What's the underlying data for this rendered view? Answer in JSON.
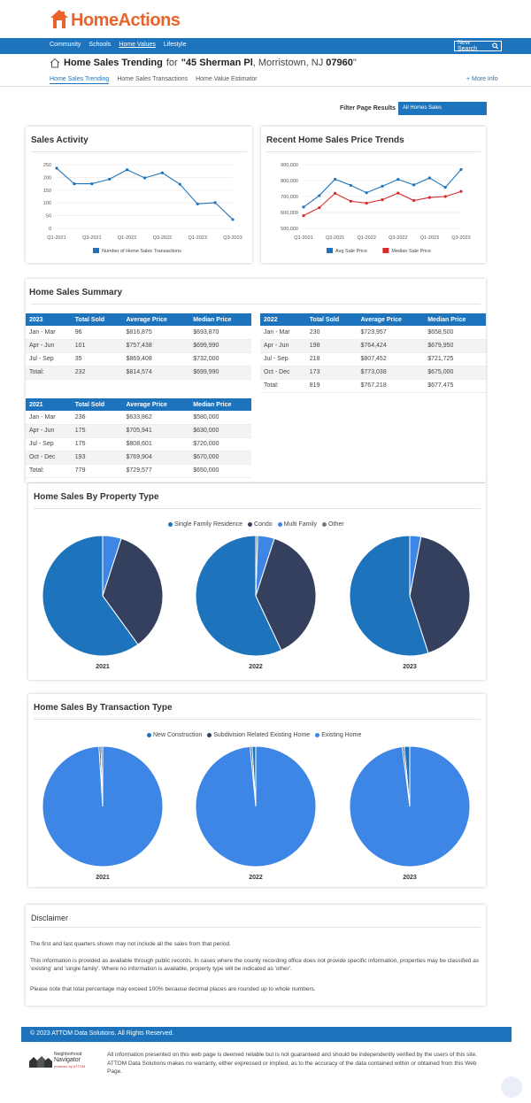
{
  "brand": {
    "name": "HomeActions",
    "accent": "#1d74bc",
    "logo_color": "#e8642c"
  },
  "nav": {
    "items": [
      "Community",
      "Schools",
      "Home Values",
      "Lifestyle"
    ],
    "active": "Home Values",
    "new_search": "New Search"
  },
  "address": {
    "prefix": "Home Sales Trending",
    "for": "for",
    "street": "\"45 Sherman Pl",
    "city": ", Morristown, NJ ",
    "zip": "07960",
    "close": "\""
  },
  "subtabs": [
    "Home Sales Trending",
    "Home Sales Transactions",
    "Home Value Estimator"
  ],
  "more_info": "+ More Info",
  "filter": {
    "label": "Filter Page Results",
    "value": "All Homes Sales"
  },
  "sales_activity": {
    "title": "Sales Activity",
    "chart_data": {
      "type": "line",
      "x": [
        "Q1-2021",
        "Q2-2021",
        "Q3-2021",
        "Q4-2021",
        "Q1-2022",
        "Q2-2022",
        "Q3-2022",
        "Q4-2022",
        "Q1-2023",
        "Q2-2023",
        "Q3-2023"
      ],
      "tick_labels": [
        "Q1-2021",
        "Q3-2021",
        "Q1-2022",
        "Q3-2022",
        "Q1-2023",
        "Q3-2023"
      ],
      "series": [
        {
          "name": "Number of Home Sales Transactions",
          "values": [
            236,
            175,
            175,
            193,
            230,
            198,
            218,
            173,
            96,
            101,
            35
          ],
          "color": "#1d74bc"
        }
      ],
      "yticks": [
        "250",
        "200",
        "150",
        "100",
        "50",
        "0"
      ],
      "ylim": [
        0,
        250
      ]
    }
  },
  "price_trends": {
    "title": "Recent Home Sales Price Trends",
    "chart_data": {
      "type": "line",
      "x": [
        "Q1-2021",
        "Q2-2021",
        "Q3-2021",
        "Q4-2021",
        "Q1-2022",
        "Q2-2022",
        "Q3-2022",
        "Q4-2022",
        "Q1-2023",
        "Q2-2023",
        "Q3-2023"
      ],
      "tick_labels": [
        "Q1-2021",
        "Q3-2021",
        "Q1-2022",
        "Q3-2022",
        "Q1-2023",
        "Q3-2023"
      ],
      "series": [
        {
          "name": "Avg Sale Price",
          "values": [
            633862,
            705941,
            808601,
            769904,
            723957,
            764424,
            807452,
            773038,
            816875,
            757438,
            869408
          ],
          "color": "#1d74bc"
        },
        {
          "name": "Median Sale Price",
          "values": [
            580000,
            630000,
            720000,
            670000,
            658500,
            679950,
            721725,
            675000,
            693870,
            699990,
            732000
          ],
          "color": "#d92b2b"
        }
      ],
      "yticks": [
        "900,000",
        "800,000",
        "700,000",
        "600,000",
        "500,000"
      ],
      "ylim": [
        500000,
        900000
      ]
    }
  },
  "summary": {
    "title": "Home Sales Summary",
    "headers": [
      "Total Sold",
      "Average Price",
      "Median Price"
    ],
    "tables": [
      {
        "year": "2023",
        "rows": [
          [
            "Jan - Mar",
            "96",
            "$816,875",
            "$693,870"
          ],
          [
            "Apr - Jun",
            "101",
            "$757,438",
            "$699,990"
          ],
          [
            "Jul - Sep",
            "35",
            "$869,408",
            "$732,000"
          ],
          [
            "Total:",
            "232",
            "$814,574",
            "$699,990"
          ]
        ]
      },
      {
        "year": "2022",
        "rows": [
          [
            "Jan - Mar",
            "230",
            "$723,957",
            "$658,500"
          ],
          [
            "Apr - Jun",
            "198",
            "$764,424",
            "$679,950"
          ],
          [
            "Jul - Sep",
            "218",
            "$807,452",
            "$721,725"
          ],
          [
            "Oct - Dec",
            "173",
            "$773,038",
            "$675,000"
          ],
          [
            "Total:",
            "819",
            "$767,218",
            "$677,475"
          ]
        ]
      },
      {
        "year": "2021",
        "rows": [
          [
            "Jan - Mar",
            "236",
            "$633,862",
            "$580,000"
          ],
          [
            "Apr - Jun",
            "175",
            "$705,941",
            "$630,000"
          ],
          [
            "Jul - Sep",
            "175",
            "$808,601",
            "$720,000"
          ],
          [
            "Oct - Dec",
            "193",
            "$769,904",
            "$670,000"
          ],
          [
            "Total:",
            "779",
            "$729,577",
            "$650,000"
          ]
        ]
      }
    ]
  },
  "property_type": {
    "title": "Home Sales By Property Type",
    "legend": [
      {
        "name": "Single Family Residence",
        "color": "#1d74bc"
      },
      {
        "name": "Condo",
        "color": "#34405e"
      },
      {
        "name": "Multi Family",
        "color": "#3e86e6"
      },
      {
        "name": "Other",
        "color": "#777777"
      }
    ],
    "chart_data": [
      {
        "type": "pie",
        "label": "2021",
        "values": [
          60,
          35,
          5,
          0
        ]
      },
      {
        "type": "pie",
        "label": "2022",
        "values": [
          57,
          38,
          4.5,
          0.5
        ]
      },
      {
        "type": "pie",
        "label": "2023",
        "values": [
          55,
          42,
          3,
          0
        ]
      }
    ]
  },
  "transaction_type": {
    "title": "Home Sales By Transaction Type",
    "legend": [
      {
        "name": "New Construction",
        "color": "#1d74bc"
      },
      {
        "name": "Subdivision Related Existing Home",
        "color": "#34405e"
      },
      {
        "name": "Existing Home",
        "color": "#3e86e6"
      }
    ],
    "chart_data": [
      {
        "type": "pie",
        "label": "2021",
        "values": [
          0.5,
          0.5,
          99
        ]
      },
      {
        "type": "pie",
        "label": "2022",
        "values": [
          1,
          0.5,
          98.5
        ]
      },
      {
        "type": "pie",
        "label": "2023",
        "values": [
          1.5,
          0.5,
          98
        ]
      }
    ]
  },
  "disclaimer": {
    "title": "Disclaimer",
    "p1": "The first and last quarters shown may not include all the sales from that period.",
    "p2": "This information is provided as available through public records. In cases where the county recording office does not provide specific information, properties may be classified as 'existing' and 'single family'. Where no information is available, property type will be indicated as 'other'.",
    "p3": "Please note that total percentage may exceed 100% because decimal places are rounded up to whole numbers."
  },
  "footer": {
    "copyright": "© 2023 ATTOM Data Solutions. All Rights Reserved.",
    "logo_line1": "Neighborhood",
    "logo_line2": "Navigator",
    "logo_line3": "powered by ATTOM",
    "text": "All information presented on this web page is deemed reliable but is not guaranteed and should be independently verified by the users of this site. ATTOM Data Solutions makes no warranty, either expressed or implied, as to the accuracy of the data contained within or obtained from this Web Page."
  }
}
